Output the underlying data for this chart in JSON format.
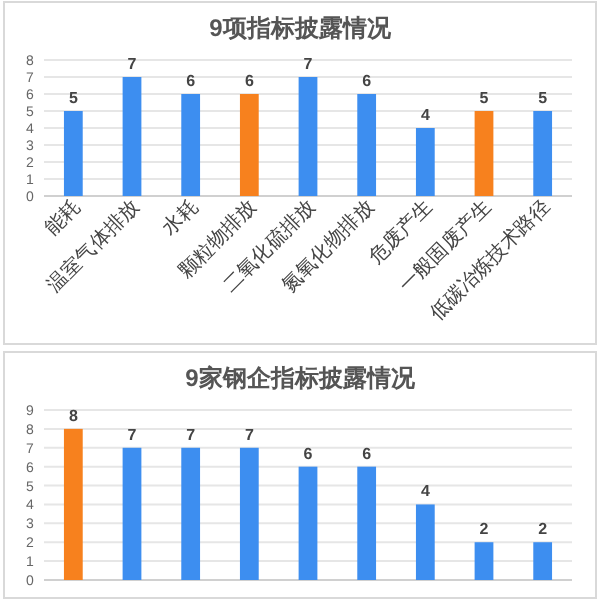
{
  "chart_data": [
    {
      "type": "bar",
      "title": "9项指标披露情况",
      "categories": [
        "能耗",
        "温室气体排放",
        "水耗",
        "颗粒物排放",
        "二氧化硫排放",
        "氮氧化物排放",
        "危废产生",
        "一般固废产生",
        "低碳冶炼技术路径"
      ],
      "values": [
        5,
        7,
        6,
        6,
        7,
        6,
        4,
        5,
        5
      ],
      "colors": [
        "#3d8ef0",
        "#3d8ef0",
        "#3d8ef0",
        "#f7811e",
        "#3d8ef0",
        "#3d8ef0",
        "#3d8ef0",
        "#f7811e",
        "#3d8ef0"
      ],
      "ylim": [
        0,
        8
      ],
      "yticks": [
        0,
        1,
        2,
        3,
        4,
        5,
        6,
        7,
        8
      ],
      "grid": "y",
      "data_labels": true
    },
    {
      "type": "bar",
      "title": "9家钢企指标披露情况",
      "categories": [
        null,
        null,
        null,
        null,
        null,
        null,
        null,
        null,
        null
      ],
      "values": [
        8,
        7,
        7,
        7,
        6,
        6,
        4,
        2,
        2
      ],
      "colors": [
        "#f7811e",
        "#3d8ef0",
        "#3d8ef0",
        "#3d8ef0",
        "#3d8ef0",
        "#3d8ef0",
        "#3d8ef0",
        "#3d8ef0",
        "#3d8ef0"
      ],
      "ylim": [
        0,
        9
      ],
      "yticks": [
        0,
        1,
        2,
        3,
        4,
        5,
        6,
        7,
        8,
        9
      ],
      "grid": "y",
      "data_labels": true
    }
  ]
}
